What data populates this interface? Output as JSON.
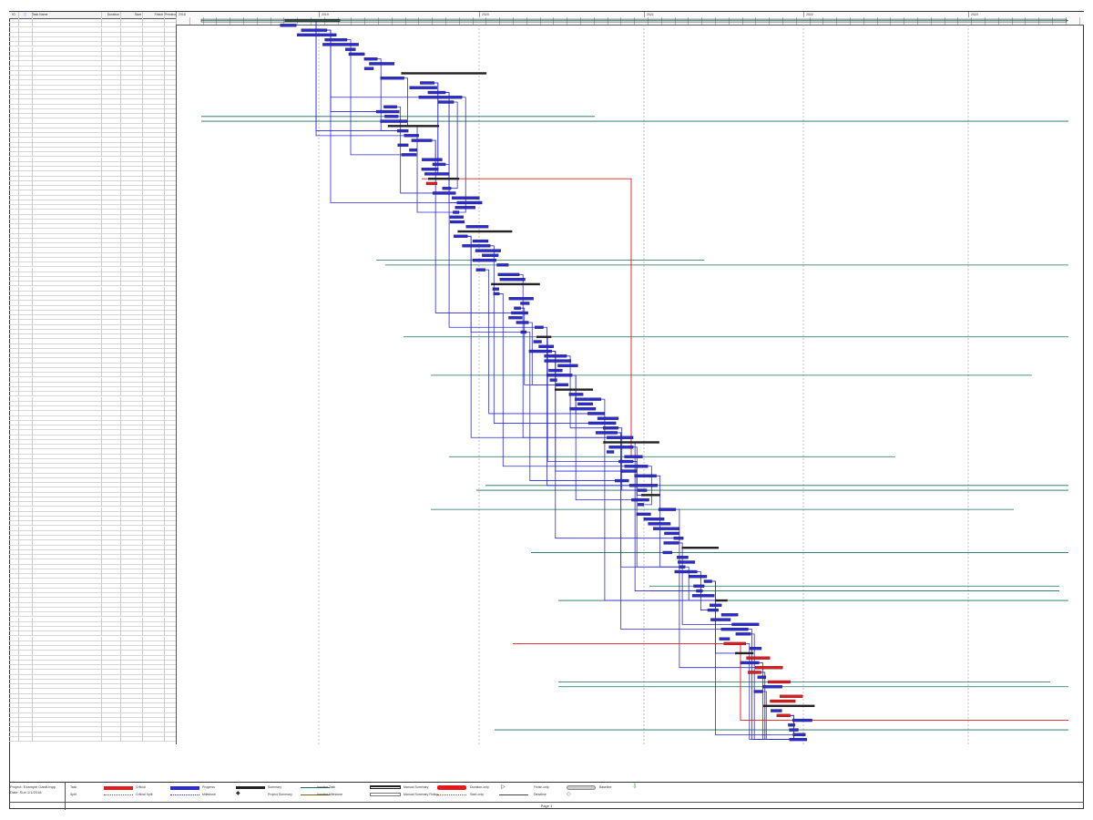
{
  "table": {
    "headers": {
      "id": "ID",
      "indicators": "",
      "name": "Task Name",
      "duration": "Duration",
      "start": "Start",
      "finish": "Finish",
      "predecessors": "Predecessors"
    },
    "row_count": 151
  },
  "timescale": {
    "years": [
      "2018",
      "2019",
      "2020",
      "2021",
      "2022",
      "2023"
    ]
  },
  "legend": {
    "project_label": "Project: Example Gantt.mpp",
    "date_label": "Date: Sun 1/1/2018",
    "items": {
      "task": "Task",
      "split": "Split",
      "milestone": "Milestone",
      "summary": "Summary",
      "project_summary": "Project Summary",
      "inactive_task": "Inactive Task",
      "inactive_milestone": "Inactive Milestone",
      "inactive_summary": "Inactive Summary",
      "manual_task": "Manual Task",
      "duration_only": "Duration-only",
      "manual_summary_rollup": "Manual Summary Rollup",
      "manual_summary": "Manual Summary",
      "start_only": "Start-only",
      "finish_only": "Finish-only",
      "deadline": "Deadline",
      "progress": "Progress",
      "critical": "Critical",
      "critical_split": "Critical Split",
      "baseline": "Baseline",
      "external_milestone": "External Milestone"
    },
    "colors": {
      "critical": "#e41a1c",
      "task": "#2b2bd6",
      "summary": "#222222",
      "deadline": "#1b6b5a",
      "baseline": "#aaaaaa"
    },
    "page": "Page 1"
  }
}
